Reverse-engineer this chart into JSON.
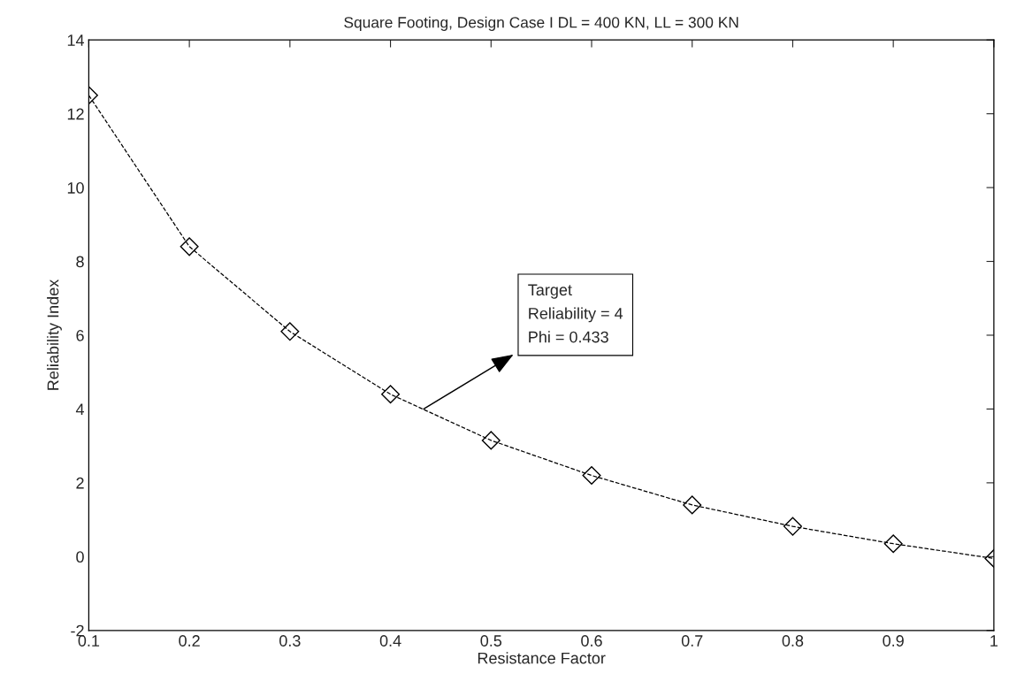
{
  "chart_data": {
    "type": "line",
    "title": "Square Footing, Design Case I DL = 400 KN, LL = 300 KN",
    "xlabel": "Resistance Factor",
    "ylabel": "Reliability Index",
    "x": [
      0.1,
      0.2,
      0.3,
      0.4,
      0.5,
      0.6,
      0.7,
      0.8,
      0.9,
      1.0
    ],
    "series": [
      {
        "color": "#000000",
        "values": [
          12.5,
          8.4,
          6.1,
          4.4,
          3.15,
          2.2,
          1.4,
          0.82,
          0.35,
          -0.05
        ]
      }
    ],
    "marker": "diamond",
    "line_style": "dashed",
    "xlim": [
      0.1,
      1
    ],
    "ylim": [
      -2,
      14
    ],
    "xticks": [
      0.1,
      0.2,
      0.3,
      0.4,
      0.5,
      0.6,
      0.7,
      0.8,
      0.9,
      {
        "value": 1,
        "label": "1"
      }
    ],
    "yticks": [
      -2,
      0,
      2,
      4,
      6,
      8,
      10,
      12,
      14
    ],
    "annotations": [
      {
        "text": "Target\nReliability = 4\nPhi = 0.433",
        "x": 0.433,
        "y": 4
      }
    ]
  }
}
